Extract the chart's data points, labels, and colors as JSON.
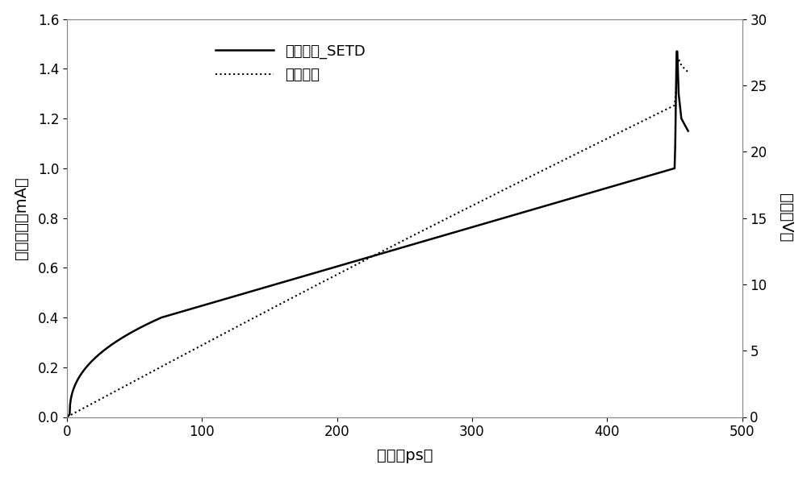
{
  "xlabel": "时间（ps）",
  "ylabel_left": "漏极电流（mA）",
  "ylabel_right": "电压（V）",
  "legend_current": "漏极电流_SETD",
  "legend_voltage": "漏极电压",
  "xlim": [
    0,
    500
  ],
  "ylim_left": [
    0,
    1.6
  ],
  "ylim_right": [
    0,
    30
  ],
  "xticks": [
    0,
    100,
    200,
    300,
    400,
    500
  ],
  "yticks_left": [
    0,
    0.2,
    0.4,
    0.6,
    0.8,
    1.0,
    1.2,
    1.4,
    1.6
  ],
  "yticks_right": [
    0,
    5,
    10,
    15,
    20,
    25,
    30
  ],
  "current_color": "#000000",
  "voltage_color": "#000000",
  "bg_color": "#ffffff",
  "plot_bg_color": "#ffffff",
  "font_size": 14,
  "legend_font_size": 13,
  "linewidth_current": 1.8,
  "linewidth_voltage": 1.5
}
